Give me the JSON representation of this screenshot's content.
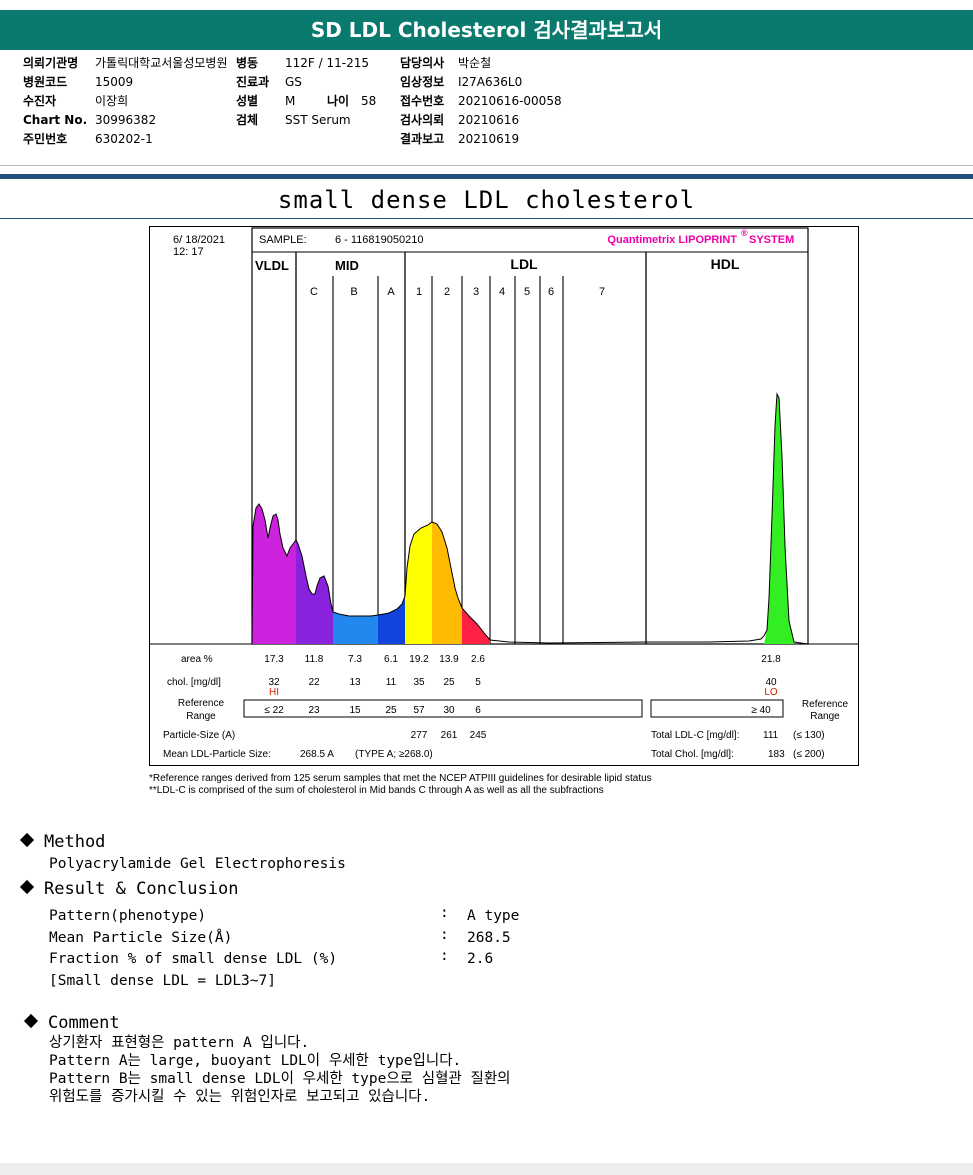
{
  "header": {
    "title": "SD LDL Cholesterol 검사결과보고서"
  },
  "info": {
    "col1": [
      {
        "label": "의뢰기관명",
        "value": "가톨릭대학교서울성모병원"
      },
      {
        "label": "병원코드",
        "value": "15009"
      },
      {
        "label": "수진자",
        "value": "이장희"
      },
      {
        "label": "Chart No.",
        "value": "30996382"
      },
      {
        "label": "주민번호",
        "value": "630202-1"
      }
    ],
    "col2": [
      {
        "label": "병동",
        "value": "112F / 11-215"
      },
      {
        "label": "진료과",
        "value": "GS"
      },
      {
        "label": "성별",
        "value": "M"
      },
      {
        "label": "검체",
        "value": "SST Serum"
      }
    ],
    "age": {
      "label": "나이",
      "value": "58"
    },
    "col3": [
      {
        "label": "담당의사",
        "value": "박순철"
      },
      {
        "label": "임상정보",
        "value": "I27A636L0"
      },
      {
        "label": "접수번호",
        "value": "20210616-00058"
      },
      {
        "label": "검사의뢰",
        "value": "20210616"
      },
      {
        "label": "결과보고",
        "value": "20210619"
      }
    ]
  },
  "section_title": "small dense LDL cholesterol",
  "report": {
    "date": "6/ 18/2021",
    "time": "12: 17",
    "sample_label": "SAMPLE:",
    "sample_id": "6 - 116819050210",
    "brand": "Quantimetrix LIPOPRINT",
    "brand_mark": "®",
    "brand_suffix": "SYSTEM",
    "groups": [
      "VLDL",
      "MID",
      "LDL",
      "HDL"
    ],
    "bands": [
      "C",
      "B",
      "A",
      "1",
      "2",
      "3",
      "4",
      "5",
      "6",
      "7"
    ],
    "row_labels": {
      "area": "area %",
      "chol": "chol. [mg/dl]",
      "ref1": "Reference",
      "ref2": "Range",
      "psize": "Particle-Size (A)",
      "mean": "Mean LDL-Particle Size:"
    },
    "area_values": [
      "17.3",
      "11.8",
      "7.3",
      "6.1",
      "19.2",
      "13.9",
      "2.6"
    ],
    "area_hdl": "21.8",
    "chol_values": [
      "32",
      "22",
      "13",
      "11",
      "35",
      "25",
      "5"
    ],
    "chol_hdl": "40",
    "hi_flag": "HI",
    "lo_flag": "LO",
    "ref_values": [
      "≤ 22",
      "23",
      "15",
      "25",
      "57",
      "30",
      "6"
    ],
    "ref_hdl": "≥ 40",
    "ref_right1": "Reference",
    "ref_right2": "Range",
    "particle_sizes": [
      "277",
      "261",
      "245"
    ],
    "mean_value": "268.5 A",
    "mean_type": "(TYPE A; ≥268.0)",
    "total_ldl_label": "Total LDL-C [mg/dl]:",
    "total_ldl_value": "111",
    "total_ldl_ref": "(≤ 130)",
    "total_chol_label": "Total Chol. [mg/dl]:",
    "total_chol_value": "183",
    "total_chol_ref": "(≤ 200)",
    "colors": {
      "vldl": "#cc22dd",
      "c": "#8822dd",
      "b": "#2288ee",
      "a": "#1144dd",
      "ldl1": "#ffff00",
      "ldl2": "#ffbb00",
      "ldl3": "#ff2244",
      "hdl": "#33ee22"
    }
  },
  "footnotes": [
    "*Reference ranges derived from 125 serum samples that met the NCEP ATPIII guidelines for desirable lipid status",
    "**LDL-C is comprised of the sum of cholesterol in Mid bands C through A as well as all the subfractions"
  ],
  "method": {
    "heading": "Method",
    "text": "Polyacrylamide Gel Electrophoresis"
  },
  "result": {
    "heading": "Result & Conclusion",
    "rows": [
      {
        "label": "Pattern(phenotype)",
        "value": "A type"
      },
      {
        "label": "Mean Particle Size(Å)",
        "value": "268.5"
      },
      {
        "label": "Fraction % of small dense LDL (%)",
        "value": "2.6"
      }
    ],
    "note": "[Small dense LDL = LDL3~7]"
  },
  "comment": {
    "heading": "Comment",
    "lines": [
      "상기환자 표현형은 pattern A 입니다.",
      "Pattern A는 large, buoyant LDL이 우세한 type입니다.",
      "Pattern B는 small dense LDL이 우세한 type으로 심혈관 질환의",
      "위험도를 증가시킬 수 있는 위험인자로 보고되고 있습니다."
    ]
  }
}
